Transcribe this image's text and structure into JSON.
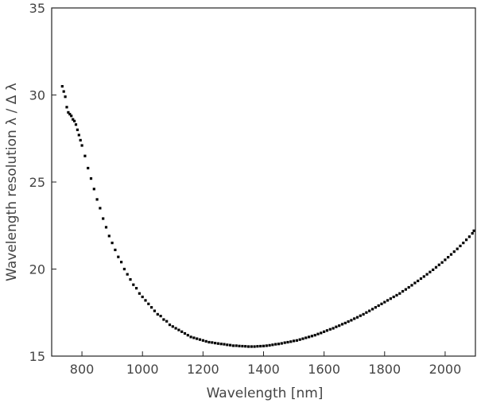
{
  "chart_data": {
    "type": "scatter",
    "title": "",
    "xlabel": "Wavelength [nm]",
    "ylabel": "Wavelength resolution λ / Δ λ",
    "xlim": [
      700,
      2100
    ],
    "ylim": [
      15,
      35
    ],
    "x_ticks": [
      800,
      1000,
      1200,
      1400,
      1600,
      1800,
      2000
    ],
    "y_ticks": [
      15,
      20,
      25,
      30,
      35
    ],
    "grid": false,
    "legend": "none",
    "marker_color": "#000000",
    "series": [
      {
        "x": [
          735,
          740,
          745,
          750,
          755,
          760,
          765,
          770,
          775,
          780,
          785,
          790,
          795,
          800,
          810,
          820,
          830,
          840,
          850,
          860,
          870,
          880,
          890,
          900,
          910,
          920,
          930,
          940,
          950,
          960,
          970,
          980,
          990,
          1000,
          1010,
          1020,
          1030,
          1040,
          1050,
          1060,
          1070,
          1080,
          1090,
          1100,
          1110,
          1120,
          1130,
          1140,
          1150,
          1160,
          1170,
          1180,
          1190,
          1200,
          1210,
          1220,
          1230,
          1240,
          1250,
          1260,
          1270,
          1280,
          1290,
          1300,
          1310,
          1320,
          1330,
          1340,
          1350,
          1360,
          1370,
          1380,
          1390,
          1400,
          1410,
          1420,
          1430,
          1440,
          1450,
          1460,
          1470,
          1480,
          1490,
          1500,
          1510,
          1520,
          1530,
          1540,
          1550,
          1560,
          1570,
          1580,
          1590,
          1600,
          1610,
          1620,
          1630,
          1640,
          1650,
          1660,
          1670,
          1680,
          1690,
          1700,
          1710,
          1720,
          1730,
          1740,
          1750,
          1760,
          1770,
          1780,
          1790,
          1800,
          1810,
          1820,
          1830,
          1840,
          1850,
          1860,
          1870,
          1880,
          1890,
          1900,
          1910,
          1920,
          1930,
          1940,
          1950,
          1960,
          1970,
          1980,
          1990,
          2000,
          2010,
          2020,
          2030,
          2040,
          2050,
          2060,
          2070,
          2080,
          2090,
          2095
        ],
        "y": [
          30.5,
          30.2,
          29.9,
          29.3,
          29.0,
          28.9,
          28.8,
          28.6,
          28.5,
          28.3,
          28.0,
          27.7,
          27.4,
          27.1,
          26.5,
          25.8,
          25.2,
          24.6,
          24.0,
          23.5,
          22.9,
          22.4,
          21.9,
          21.5,
          21.1,
          20.7,
          20.4,
          20.0,
          19.7,
          19.4,
          19.1,
          18.9,
          18.6,
          18.4,
          18.2,
          18.0,
          17.8,
          17.6,
          17.4,
          17.3,
          17.1,
          17.0,
          16.8,
          16.7,
          16.6,
          16.5,
          16.4,
          16.3,
          16.2,
          16.1,
          16.05,
          16.0,
          15.95,
          15.9,
          15.85,
          15.8,
          15.78,
          15.75,
          15.72,
          15.7,
          15.68,
          15.65,
          15.63,
          15.6,
          15.6,
          15.58,
          15.57,
          15.56,
          15.55,
          15.55,
          15.55,
          15.56,
          15.57,
          15.58,
          15.6,
          15.62,
          15.65,
          15.68,
          15.7,
          15.73,
          15.77,
          15.8,
          15.83,
          15.87,
          15.9,
          15.95,
          16.0,
          16.05,
          16.1,
          16.15,
          16.2,
          16.27,
          16.33,
          16.4,
          16.47,
          16.54,
          16.6,
          16.68,
          16.75,
          16.83,
          16.9,
          16.98,
          17.06,
          17.15,
          17.23,
          17.32,
          17.4,
          17.5,
          17.6,
          17.7,
          17.8,
          17.9,
          18.0,
          18.1,
          18.2,
          18.3,
          18.4,
          18.5,
          18.6,
          18.72,
          18.83,
          18.95,
          19.07,
          19.2,
          19.32,
          19.45,
          19.57,
          19.7,
          19.83,
          19.96,
          20.1,
          20.24,
          20.38,
          20.53,
          20.68,
          20.84,
          21.0,
          21.16,
          21.33,
          21.5,
          21.68,
          21.86,
          22.05,
          22.2
        ]
      }
    ]
  }
}
